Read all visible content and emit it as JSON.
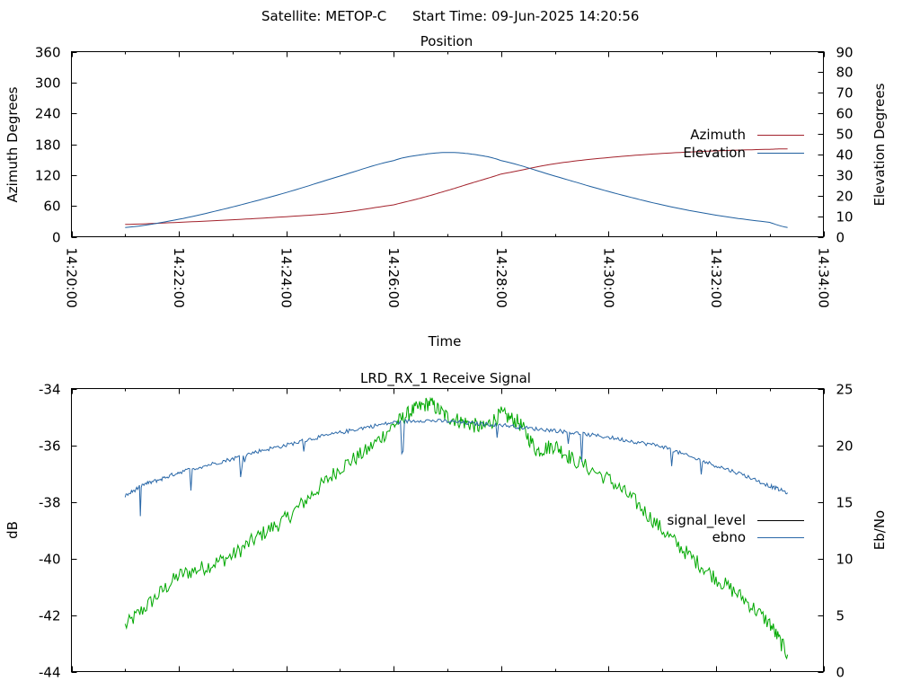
{
  "header": {
    "satellite": "Satellite: METOP-C",
    "start_time": "Start Time: 09-Jun-2025 14:20:56"
  },
  "colors": {
    "azimuth": "#a3222c",
    "elevation": "#1f5f9f",
    "signal": "#00a800",
    "ebno": "#2a68a8",
    "signal_level_key": "#000000"
  },
  "chart_data": [
    {
      "type": "line",
      "title": "Position",
      "xlabel": "Time",
      "ylabel": "Azimuth Degrees",
      "y2label": "Elevation Degrees",
      "xlim": [
        "14:20:00",
        "14:34:00"
      ],
      "ylim": [
        0,
        360
      ],
      "y2lim": [
        0,
        90
      ],
      "x_ticks": [
        "14:20:00",
        "14:22:00",
        "14:24:00",
        "14:26:00",
        "14:28:00",
        "14:30:00",
        "14:32:00",
        "14:34:00"
      ],
      "y_ticks": [
        "0",
        "60",
        "120",
        "180",
        "240",
        "300",
        "360"
      ],
      "y2_ticks": [
        "0",
        "10",
        "20",
        "30",
        "40",
        "50",
        "60",
        "70",
        "80",
        "90"
      ],
      "legend_position": "right",
      "series": [
        {
          "name": "Azimuth",
          "axis": "y",
          "x": [
            "14:21:00",
            "14:22:00",
            "14:23:00",
            "14:24:00",
            "14:25:00",
            "14:26:00",
            "14:26:30",
            "14:27:00",
            "14:27:30",
            "14:28:00",
            "14:29:00",
            "14:30:00",
            "14:31:00",
            "14:32:00",
            "14:33:00",
            "14:33:20"
          ],
          "values": [
            24,
            28,
            33,
            39,
            47,
            62,
            75,
            90,
            106,
            122,
            142,
            154,
            162,
            167,
            170,
            171
          ]
        },
        {
          "name": "Elevation",
          "axis": "y2",
          "x": [
            "14:21:00",
            "14:22:00",
            "14:23:00",
            "14:24:00",
            "14:25:00",
            "14:26:00",
            "14:26:30",
            "14:27:00",
            "14:27:30",
            "14:28:00",
            "14:29:00",
            "14:30:00",
            "14:31:00",
            "14:32:00",
            "14:33:00",
            "14:33:20"
          ],
          "values": [
            4.5,
            8.5,
            14.5,
            21.5,
            29.5,
            37,
            39.8,
            41,
            40,
            37,
            29.5,
            22,
            15.5,
            10.5,
            7,
            4.5
          ]
        }
      ]
    },
    {
      "type": "line",
      "title": "LRD_RX_1 Receive Signal",
      "xlabel": "",
      "ylabel": "dB",
      "y2label": "Eb/No",
      "xlim": [
        "14:20:00",
        "14:34:00"
      ],
      "ylim": [
        -44,
        -34
      ],
      "y2lim": [
        0,
        25
      ],
      "y_ticks": [
        "-44",
        "-42",
        "-40",
        "-38",
        "-36",
        "-34"
      ],
      "y2_ticks": [
        "0",
        "5",
        "10",
        "15",
        "20",
        "25"
      ],
      "legend_position": "right",
      "series": [
        {
          "name": "signal_level",
          "axis": "y",
          "x": [
            "14:21:00",
            "14:21:30",
            "14:22:00",
            "14:22:30",
            "14:23:00",
            "14:23:30",
            "14:24:00",
            "14:24:30",
            "14:25:00",
            "14:25:30",
            "14:26:00",
            "14:26:20",
            "14:26:40",
            "14:27:00",
            "14:27:20",
            "14:27:40",
            "14:28:00",
            "14:28:20",
            "14:28:40",
            "14:29:00",
            "14:29:20",
            "14:30:00",
            "14:30:30",
            "14:31:00",
            "14:31:30",
            "14:32:00",
            "14:32:30",
            "14:33:00",
            "14:33:20"
          ],
          "values": [
            -42.4,
            -41.5,
            -40.6,
            -40.3,
            -39.9,
            -39.2,
            -38.6,
            -37.7,
            -36.8,
            -36.2,
            -35.3,
            -34.8,
            -34.5,
            -35.0,
            -35.2,
            -35.4,
            -34.9,
            -35.2,
            -36.2,
            -36.0,
            -36.5,
            -37.2,
            -38.0,
            -39.0,
            -39.9,
            -40.7,
            -41.4,
            -42.3,
            -43.4
          ]
        },
        {
          "name": "ebno",
          "axis": "y2",
          "x": [
            "14:21:00",
            "14:21:20",
            "14:21:40",
            "14:22:00",
            "14:22:30",
            "14:23:00",
            "14:23:30",
            "14:24:00",
            "14:24:30",
            "14:25:00",
            "14:25:30",
            "14:26:00",
            "14:26:30",
            "14:27:00",
            "14:27:30",
            "14:28:00",
            "14:28:30",
            "14:29:00",
            "14:29:30",
            "14:30:00",
            "14:30:30",
            "14:31:00",
            "14:31:30",
            "14:32:00",
            "14:32:30",
            "14:33:00",
            "14:33:20"
          ],
          "values": [
            15.5,
            16.5,
            17.0,
            17.6,
            18.2,
            18.8,
            19.5,
            20.0,
            20.6,
            21.1,
            21.6,
            22.0,
            22.2,
            22.1,
            21.9,
            21.8,
            21.5,
            21.3,
            21.0,
            20.7,
            20.3,
            19.9,
            19.0,
            18.2,
            17.4,
            16.4,
            15.8
          ]
        }
      ]
    }
  ]
}
